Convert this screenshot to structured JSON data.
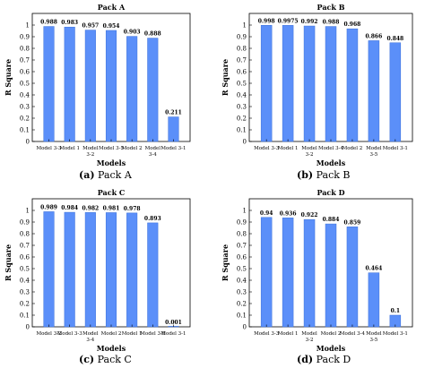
{
  "chart_data": [
    {
      "type": "bar",
      "title": "Pack A",
      "xlabel": "Models",
      "ylabel": "R Square",
      "ylim": [
        0,
        1.1
      ],
      "yticks": [
        0,
        0.1,
        0.2,
        0.3,
        0.4,
        0.5,
        0.6,
        0.7,
        0.8,
        0.9,
        1
      ],
      "categories": [
        [
          "Model 3-3"
        ],
        [
          "Model 1"
        ],
        [
          "Model",
          "3-2"
        ],
        [
          "Model 3-5"
        ],
        [
          "Model 2"
        ],
        [
          "Model",
          "3-4"
        ],
        [
          "Model 3-1"
        ]
      ],
      "values": [
        0.988,
        0.983,
        0.957,
        0.954,
        0.903,
        0.888,
        0.211
      ],
      "value_labels": [
        "0.988",
        "0.983",
        "0.957",
        "0.954",
        "0.903",
        "0.888",
        "0.211"
      ],
      "grid": false,
      "bar_color": "#5b8ff9",
      "caption_letter": "(a)",
      "caption_text": "Pack A"
    },
    {
      "type": "bar",
      "title": "Pack B",
      "xlabel": "Models",
      "ylabel": "R Square",
      "ylim": [
        0,
        1.1
      ],
      "yticks": [
        0,
        0.1,
        0.2,
        0.3,
        0.4,
        0.5,
        0.6,
        0.7,
        0.8,
        0.9,
        1
      ],
      "categories": [
        [
          "Model 3-3"
        ],
        [
          "Model 1"
        ],
        [
          "Model",
          "3-2"
        ],
        [
          "Model 3-4"
        ],
        [
          "Model 2"
        ],
        [
          "Model",
          "3-5"
        ],
        [
          "Model 3-1"
        ]
      ],
      "values": [
        0.998,
        0.9975,
        0.992,
        0.988,
        0.968,
        0.866,
        0.848
      ],
      "value_labels": [
        "0.998",
        "0.9975",
        "0.992",
        "0.988",
        "0.968",
        "0.866",
        "0.848"
      ],
      "grid": false,
      "bar_color": "#5b8ff9",
      "caption_letter": "(b)",
      "caption_text": "Pack B"
    },
    {
      "type": "bar",
      "title": "Pack C",
      "xlabel": "Models",
      "ylabel": "R Square",
      "ylim": [
        0,
        1.1
      ],
      "yticks": [
        0,
        0.1,
        0.2,
        0.3,
        0.4,
        0.5,
        0.6,
        0.7,
        0.8,
        0.9,
        1
      ],
      "categories": [
        [
          "Model 3-2"
        ],
        [
          "Model 3-3"
        ],
        [
          "Model",
          "3-4"
        ],
        [
          "Model 2"
        ],
        [
          "Model 1"
        ],
        [
          "Model 3-5"
        ],
        [
          "Model 3-1"
        ]
      ],
      "values": [
        0.989,
        0.984,
        0.982,
        0.981,
        0.978,
        0.893,
        0.001
      ],
      "value_labels": [
        "0.989",
        "0.984",
        "0.982",
        "0.981",
        "0.978",
        "0.893",
        "0.001"
      ],
      "grid": false,
      "bar_color": "#5b8ff9",
      "caption_letter": "(c)",
      "caption_text": "Pack C"
    },
    {
      "type": "bar",
      "title": "Pack D",
      "xlabel": "Models",
      "ylabel": "R Square",
      "ylim": [
        0,
        1.1
      ],
      "yticks": [
        0,
        0.1,
        0.2,
        0.3,
        0.4,
        0.5,
        0.6,
        0.7,
        0.8,
        0.9,
        1
      ],
      "categories": [
        [
          "Model 3-3"
        ],
        [
          "Model 1"
        ],
        [
          "Model",
          "3-2"
        ],
        [
          "Model 2"
        ],
        [
          "Model 3-4"
        ],
        [
          "Model",
          "3-5"
        ],
        [
          "Model 3-1"
        ]
      ],
      "values": [
        0.94,
        0.936,
        0.922,
        0.884,
        0.859,
        0.464,
        0.1
      ],
      "value_labels": [
        "0.94",
        "0.936",
        "0.922",
        "0.884",
        "0.859",
        "0.464",
        "0.1"
      ],
      "grid": false,
      "bar_color": "#5b8ff9",
      "caption_letter": "(d)",
      "caption_text": "Pack D"
    }
  ]
}
